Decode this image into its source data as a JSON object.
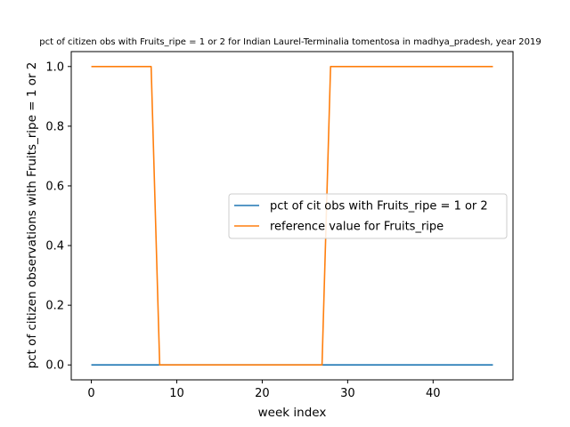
{
  "chart_data": {
    "type": "line",
    "title": "pct of citizen obs with Fruits_ripe = 1 or 2 for Indian Laurel-Terminalia tomentosa in madhya_pradesh, year 2019",
    "xlabel": "week index",
    "ylabel": "pct of citizen observations with Fruits_ripe = 1 or 2",
    "xlim": [
      -2.35,
      49.35
    ],
    "ylim": [
      -0.05,
      1.05
    ],
    "x_ticks": [
      0,
      10,
      20,
      30,
      40
    ],
    "y_ticks": [
      0.0,
      0.2,
      0.4,
      0.6,
      0.8,
      1.0
    ],
    "x_tick_labels": [
      "0",
      "10",
      "20",
      "30",
      "40"
    ],
    "y_tick_labels": [
      "0.0",
      "0.2",
      "0.4",
      "0.6",
      "0.8",
      "1.0"
    ],
    "grid": false,
    "legend_position": "center-right",
    "series": [
      {
        "name": "pct of cit obs with Fruits_ripe = 1 or 2",
        "color": "#1f77b4",
        "x": [
          0,
          47
        ],
        "values": [
          0,
          0
        ]
      },
      {
        "name": "reference value for Fruits_ripe",
        "color": "#ff7f0e",
        "x": [
          0,
          7,
          8,
          27,
          28,
          47
        ],
        "values": [
          1,
          1,
          0,
          0,
          1,
          1
        ]
      }
    ]
  }
}
